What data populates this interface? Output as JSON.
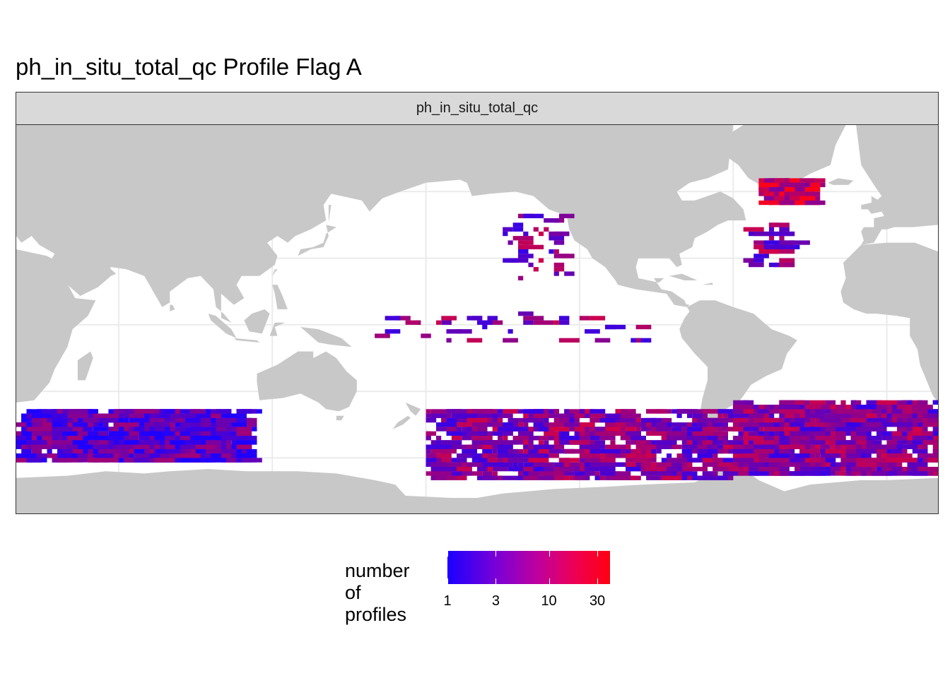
{
  "title": "ph_in_situ_total_qc Profile Flag A",
  "facet_label": "ph_in_situ_total_qc",
  "colors": {
    "land": "#c8c8c8",
    "ocean": "#ffffff",
    "grid": "#ebebeb",
    "strip": "#d9d9d9",
    "low": "#0000ff",
    "high": "#ff0000"
  },
  "legend": {
    "title": "number of\nprofiles",
    "ticks": [
      "1",
      "3",
      "10",
      "30"
    ],
    "scale": "log"
  },
  "chart_data": {
    "type": "heatmap",
    "title": "ph_in_situ_total_qc Profile Flag A",
    "projection": "equirectangular, Pacific-centred (20°E to 380°E)",
    "xlim": [
      20,
      380
    ],
    "ylim": [
      -85,
      90
    ],
    "value_name": "number of profiles",
    "value_range": [
      1,
      40
    ],
    "grid": true,
    "legend_position": "bottom",
    "regions": [
      {
        "name": "Southern Ocean band Indian sector",
        "lon": [
          20,
          110
        ],
        "lat": [
          -62,
          -38
        ],
        "density": "high",
        "level": "low-mid"
      },
      {
        "name": "Southern Ocean band Pacific sector",
        "lon": [
          180,
          300
        ],
        "lat": [
          -70,
          -38
        ],
        "density": "high",
        "level": "mid"
      },
      {
        "name": "Southern Ocean band Atlantic sector",
        "lon": [
          300,
          380
        ],
        "lat": [
          -68,
          -35
        ],
        "density": "high",
        "level": "mid"
      },
      {
        "name": "Labrador Sea / Greenland",
        "lon": [
          310,
          330
        ],
        "lat": [
          55,
          65
        ],
        "density": "medium",
        "level": "high"
      },
      {
        "name": "North Pacific tracks",
        "lon": [
          210,
          235
        ],
        "lat": [
          20,
          50
        ],
        "density": "low",
        "level": "mid"
      },
      {
        "name": "Equatorial Pacific tracks",
        "lon": [
          160,
          265
        ],
        "lat": [
          -8,
          5
        ],
        "density": "low",
        "level": "mid"
      },
      {
        "name": "North Atlantic tracks",
        "lon": [
          305,
          325
        ],
        "lat": [
          25,
          45
        ],
        "density": "low",
        "level": "mid"
      }
    ]
  }
}
